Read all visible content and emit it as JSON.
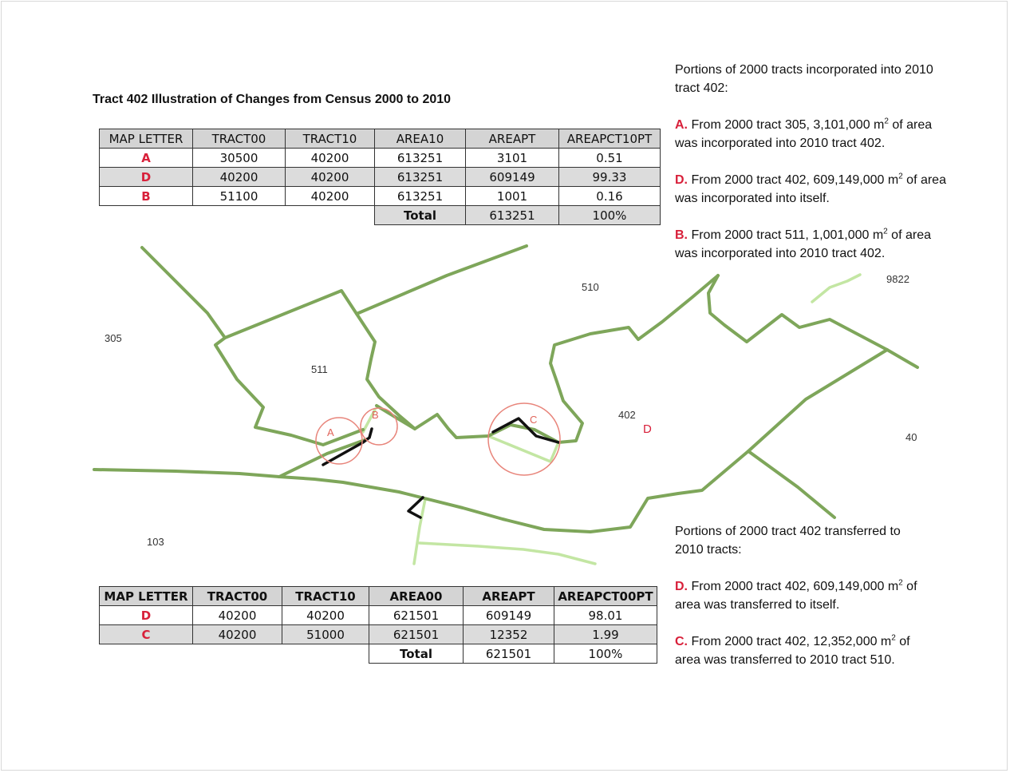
{
  "title": "Tract 402 Illustration of Changes from Census 2000 to 2010",
  "table_top": {
    "headers": [
      "MAP LETTER",
      "TRACT00",
      "TRACT10",
      "AREA10",
      "AREAPT",
      "AREAPCT10PT"
    ],
    "rows": [
      {
        "letter": "A",
        "tract00": "30500",
        "tract10": "40200",
        "area": "613251",
        "areapt": "3101",
        "pct": "0.51"
      },
      {
        "letter": "D",
        "tract00": "40200",
        "tract10": "40200",
        "area": "613251",
        "areapt": "609149",
        "pct": "99.33"
      },
      {
        "letter": "B",
        "tract00": "51100",
        "tract10": "40200",
        "area": "613251",
        "areapt": "1001",
        "pct": "0.16"
      }
    ],
    "total": {
      "label": "Total",
      "areapt": "613251",
      "pct": "100%"
    }
  },
  "table_bottom": {
    "headers": [
      "MAP LETTER",
      "TRACT00",
      "TRACT10",
      "AREA00",
      "AREAPT",
      "AREAPCT00PT"
    ],
    "rows": [
      {
        "letter": "D",
        "tract00": "40200",
        "tract10": "40200",
        "area": "621501",
        "areapt": "609149",
        "pct": "98.01"
      },
      {
        "letter": "C",
        "tract00": "40200",
        "tract10": "51000",
        "area": "621501",
        "areapt": "12352",
        "pct": "1.99"
      }
    ],
    "total": {
      "label": "Total",
      "areapt": "621501",
      "pct": "100%"
    }
  },
  "notes_top": {
    "heading": "Portions of 2000 tracts incorporated into 2010 tract 402:",
    "items": [
      {
        "letter": "A.",
        "pre": " From 2000 tract 305, 3,101,000 m",
        "sup": "2",
        "post": "  of area was incorporated into 2010 tract 402."
      },
      {
        "letter": "D.",
        "pre": " From 2000 tract 402, 609,149,000 m",
        "sup": "2",
        "post": "  of area was incorporated into itself."
      },
      {
        "letter": "B.",
        "pre": " From 2000 tract 511, 1,001,000 m",
        "sup": "2",
        "post": "  of area was incorporated into 2010 tract 402."
      }
    ]
  },
  "notes_bottom": {
    "heading": "Portions of 2000 tract 402 transferred to 2010 tracts:",
    "items": [
      {
        "letter": "D.",
        "pre": " From 2000 tract 402, 609,149,000 m",
        "sup": "2",
        "post": "  of area was transferred to itself."
      },
      {
        "letter": "C.",
        "pre": " From 2000 tract 402, 12,352,000 m",
        "sup": "2",
        "post": " of area was transferred to 2010 tract 510."
      }
    ]
  },
  "map": {
    "labels": {
      "t305": "305",
      "t511": "511",
      "t510": "510",
      "t402": "402",
      "t103": "103",
      "t9822": "9822",
      "t40": "40"
    },
    "markers": {
      "a": "A",
      "b": "B",
      "c": "C",
      "d": "D"
    },
    "colors": {
      "boundary_2010": "#7ea65a",
      "boundary_2000": "#c3e6a3",
      "changed": "#111111",
      "circle": "#e8857b",
      "letter": "#d8203a"
    }
  }
}
